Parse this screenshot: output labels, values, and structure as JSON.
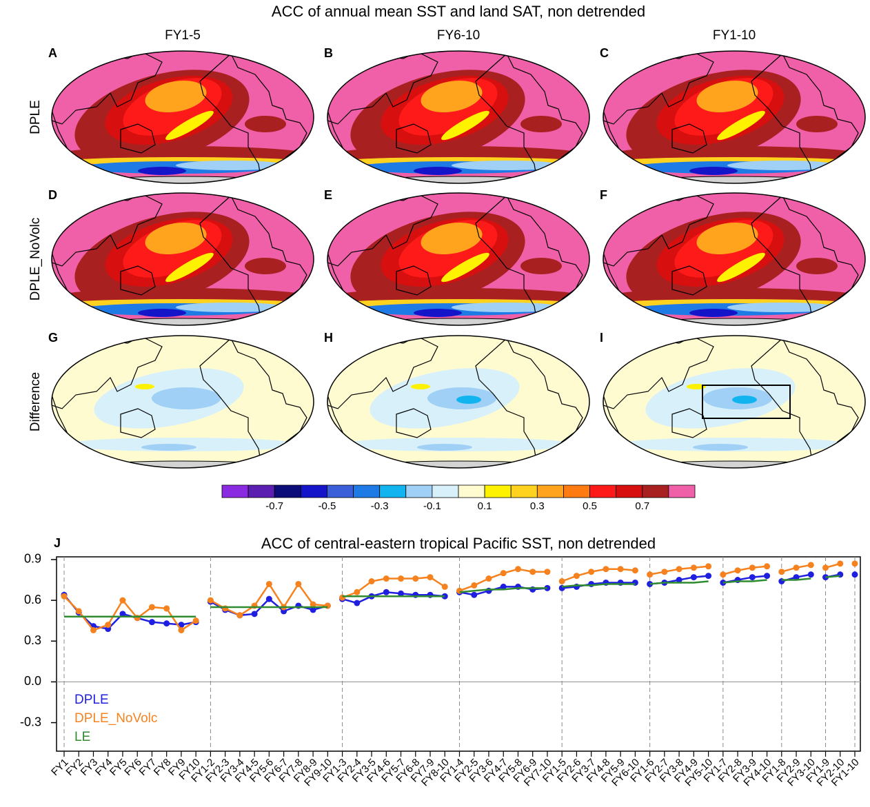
{
  "figure": {
    "title": "ACC of annual mean SST and land SAT, non detrended",
    "columns": [
      "FY1-5",
      "FY6-10",
      "FY1-10"
    ],
    "rows": [
      "DPLE",
      "DPLE_NoVolc",
      "Difference"
    ],
    "panel_letters": [
      "A",
      "B",
      "C",
      "D",
      "E",
      "F",
      "G",
      "H",
      "I"
    ],
    "colorbar": {
      "colors": [
        "#8a2be2",
        "#5a1fb0",
        "#0b0b7a",
        "#1414c8",
        "#3a5fd8",
        "#1e7be6",
        "#12b4ef",
        "#a0d0f5",
        "#d8f0fa",
        "#fffbd0",
        "#fff200",
        "#ffd21f",
        "#ffa41c",
        "#ff7a10",
        "#ff1a1a",
        "#d80f0f",
        "#a82020",
        "#ef60a8"
      ],
      "lim": [
        -0.9,
        0.9
      ],
      "ticks": [
        -0.7,
        -0.5,
        -0.3,
        -0.1,
        0.1,
        0.3,
        0.5,
        0.7
      ]
    }
  },
  "chart_data": {
    "type": "line",
    "panel_letter": "J",
    "title": "ACC of central-eastern tropical Pacific SST, non detrended",
    "categories": [
      "FY1",
      "FY2",
      "FY3",
      "FY4",
      "FY5",
      "FY6",
      "FY7",
      "FY8",
      "FY9",
      "FY10",
      "FY1-2",
      "FY2-3",
      "FY3-4",
      "FY4-5",
      "FY5-6",
      "FY6-7",
      "FY7-8",
      "FY8-9",
      "FY9-10",
      "FY1-3",
      "FY2-4",
      "FY3-5",
      "FY4-6",
      "FY5-7",
      "FY6-8",
      "FY7-9",
      "FY8-10",
      "FY1-4",
      "FY2-5",
      "FY3-6",
      "FY4-7",
      "FY5-8",
      "FY6-9",
      "FY7-10",
      "FY1-5",
      "FY2-6",
      "FY3-7",
      "FY4-8",
      "FY5-9",
      "FY6-10",
      "FY1-6",
      "FY2-7",
      "FY3-8",
      "FY4-9",
      "FY5-10",
      "FY1-7",
      "FY2-8",
      "FY3-9",
      "FY4-10",
      "FY1-8",
      "FY2-9",
      "FY3-10",
      "FY1-9",
      "FY2-10",
      "FY1-10"
    ],
    "series": [
      {
        "name": "DPLE",
        "color": "#1f1fe0",
        "markers": true,
        "values": [
          0.64,
          0.51,
          0.41,
          0.39,
          0.5,
          0.47,
          0.44,
          0.43,
          0.42,
          0.44,
          0.59,
          0.53,
          0.49,
          0.5,
          0.61,
          0.52,
          0.56,
          0.53,
          0.56,
          0.61,
          0.58,
          0.63,
          0.66,
          0.65,
          0.64,
          0.64,
          0.63,
          0.66,
          0.64,
          0.67,
          0.7,
          0.7,
          0.68,
          0.69,
          0.69,
          0.7,
          0.72,
          0.73,
          0.73,
          0.73,
          0.72,
          0.73,
          0.75,
          0.77,
          0.78,
          0.73,
          0.75,
          0.77,
          0.78,
          0.74,
          0.77,
          0.79,
          0.77,
          0.79,
          0.79
        ]
      },
      {
        "name": "DPLE_NoVolc",
        "color": "#f5821f",
        "markers": true,
        "values": [
          0.63,
          0.52,
          0.38,
          0.42,
          0.6,
          0.47,
          0.55,
          0.54,
          0.38,
          0.45,
          0.6,
          0.54,
          0.49,
          0.56,
          0.72,
          0.55,
          0.72,
          0.57,
          0.56,
          0.62,
          0.66,
          0.74,
          0.76,
          0.76,
          0.76,
          0.77,
          0.7,
          0.67,
          0.71,
          0.76,
          0.8,
          0.83,
          0.81,
          0.81,
          0.74,
          0.78,
          0.81,
          0.83,
          0.83,
          0.82,
          0.79,
          0.81,
          0.83,
          0.84,
          0.85,
          0.79,
          0.82,
          0.84,
          0.85,
          0.81,
          0.84,
          0.86,
          0.84,
          0.87,
          0.87
        ]
      },
      {
        "name": "LE",
        "color": "#2e8b2e",
        "markers": false,
        "values": [
          0.48,
          0.48,
          0.48,
          0.48,
          0.48,
          0.48,
          0.48,
          0.48,
          0.48,
          0.48,
          0.55,
          0.55,
          0.55,
          0.55,
          0.55,
          0.55,
          0.55,
          0.55,
          0.55,
          0.63,
          0.63,
          0.63,
          0.63,
          0.63,
          0.63,
          0.63,
          0.63,
          0.66,
          0.67,
          0.68,
          0.68,
          0.69,
          0.69,
          0.69,
          0.7,
          0.71,
          0.71,
          0.72,
          0.72,
          0.72,
          0.72,
          0.73,
          0.73,
          0.73,
          0.74,
          0.73,
          0.74,
          0.74,
          0.75,
          0.75,
          0.75,
          0.76,
          0.77,
          0.78,
          0.78
        ]
      }
    ],
    "ylim": [
      -0.51,
      0.92
    ],
    "yticks": [
      0.9,
      0.6,
      0.3,
      {
        "value": 0,
        "label": "0.0"
      },
      -0.3
    ]
  }
}
